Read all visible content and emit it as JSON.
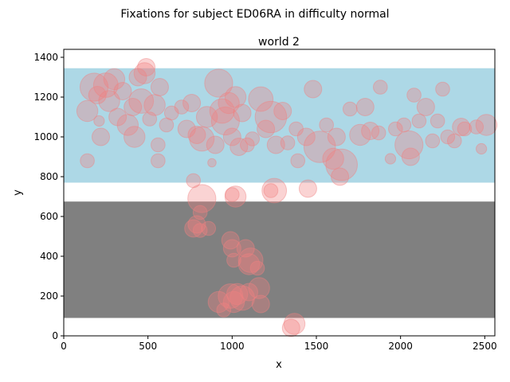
{
  "figure": {
    "suptitle": "Fixations for subject ED06RA in difficulty normal"
  },
  "chart_data": {
    "type": "scatter",
    "title": "world 2",
    "xlabel": "x",
    "ylabel": "y",
    "xlim": [
      0,
      2560
    ],
    "ylim": [
      0,
      1440
    ],
    "xticks": [
      0,
      500,
      1000,
      1500,
      2000,
      2500
    ],
    "yticks": [
      0,
      200,
      400,
      600,
      800,
      1000,
      1200,
      1400
    ],
    "grid": false,
    "legend": "none",
    "regions": [
      {
        "y_min": 770,
        "y_max": 1345,
        "color": "#add8e6"
      },
      {
        "y_min": 90,
        "y_max": 675,
        "color": "#808080"
      }
    ],
    "marker_color": "#f08080",
    "marker_alpha": 0.35,
    "points": [
      {
        "x": 140,
        "y": 1130,
        "s": 30
      },
      {
        "x": 180,
        "y": 1250,
        "s": 40
      },
      {
        "x": 200,
        "y": 1210,
        "s": 25
      },
      {
        "x": 210,
        "y": 1080,
        "s": 15
      },
      {
        "x": 220,
        "y": 1000,
        "s": 25
      },
      {
        "x": 140,
        "y": 880,
        "s": 20
      },
      {
        "x": 250,
        "y": 1260,
        "s": 35
      },
      {
        "x": 270,
        "y": 1180,
        "s": 30
      },
      {
        "x": 300,
        "y": 1290,
        "s": 30
      },
      {
        "x": 320,
        "y": 1100,
        "s": 25
      },
      {
        "x": 350,
        "y": 1230,
        "s": 25
      },
      {
        "x": 380,
        "y": 1060,
        "s": 30
      },
      {
        "x": 410,
        "y": 1150,
        "s": 25
      },
      {
        "x": 420,
        "y": 1000,
        "s": 30
      },
      {
        "x": 440,
        "y": 1300,
        "s": 25
      },
      {
        "x": 460,
        "y": 1180,
        "s": 35
      },
      {
        "x": 480,
        "y": 1320,
        "s": 30
      },
      {
        "x": 490,
        "y": 1350,
        "s": 25
      },
      {
        "x": 510,
        "y": 1090,
        "s": 20
      },
      {
        "x": 540,
        "y": 1160,
        "s": 30
      },
      {
        "x": 560,
        "y": 960,
        "s": 20
      },
      {
        "x": 560,
        "y": 880,
        "s": 20
      },
      {
        "x": 570,
        "y": 1250,
        "s": 25
      },
      {
        "x": 610,
        "y": 1060,
        "s": 20
      },
      {
        "x": 640,
        "y": 1120,
        "s": 20
      },
      {
        "x": 700,
        "y": 1150,
        "s": 20
      },
      {
        "x": 730,
        "y": 1040,
        "s": 25
      },
      {
        "x": 760,
        "y": 1170,
        "s": 25
      },
      {
        "x": 790,
        "y": 1010,
        "s": 25
      },
      {
        "x": 820,
        "y": 990,
        "s": 35
      },
      {
        "x": 850,
        "y": 1100,
        "s": 30
      },
      {
        "x": 880,
        "y": 870,
        "s": 12
      },
      {
        "x": 900,
        "y": 960,
        "s": 25
      },
      {
        "x": 920,
        "y": 1270,
        "s": 40
      },
      {
        "x": 940,
        "y": 1130,
        "s": 35
      },
      {
        "x": 960,
        "y": 1080,
        "s": 40
      },
      {
        "x": 980,
        "y": 1170,
        "s": 30
      },
      {
        "x": 1000,
        "y": 1000,
        "s": 25
      },
      {
        "x": 1020,
        "y": 1200,
        "s": 30
      },
      {
        "x": 1040,
        "y": 950,
        "s": 25
      },
      {
        "x": 1060,
        "y": 1120,
        "s": 25
      },
      {
        "x": 1090,
        "y": 960,
        "s": 20
      },
      {
        "x": 1120,
        "y": 990,
        "s": 20
      },
      {
        "x": 1170,
        "y": 1190,
        "s": 35
      },
      {
        "x": 1200,
        "y": 1040,
        "s": 25
      },
      {
        "x": 1230,
        "y": 1100,
        "s": 45
      },
      {
        "x": 1260,
        "y": 960,
        "s": 25
      },
      {
        "x": 1300,
        "y": 1130,
        "s": 25
      },
      {
        "x": 1330,
        "y": 970,
        "s": 20
      },
      {
        "x": 1380,
        "y": 1040,
        "s": 20
      },
      {
        "x": 1390,
        "y": 880,
        "s": 20
      },
      {
        "x": 1440,
        "y": 1000,
        "s": 25
      },
      {
        "x": 1480,
        "y": 1240,
        "s": 25
      },
      {
        "x": 1520,
        "y": 950,
        "s": 45
      },
      {
        "x": 1560,
        "y": 1060,
        "s": 20
      },
      {
        "x": 1600,
        "y": 890,
        "s": 30
      },
      {
        "x": 1620,
        "y": 1000,
        "s": 25
      },
      {
        "x": 1650,
        "y": 860,
        "s": 45
      },
      {
        "x": 1640,
        "y": 800,
        "s": 25
      },
      {
        "x": 1700,
        "y": 1140,
        "s": 20
      },
      {
        "x": 1760,
        "y": 1010,
        "s": 30
      },
      {
        "x": 1790,
        "y": 1150,
        "s": 25
      },
      {
        "x": 1820,
        "y": 1030,
        "s": 25
      },
      {
        "x": 1870,
        "y": 1020,
        "s": 20
      },
      {
        "x": 1880,
        "y": 1250,
        "s": 20
      },
      {
        "x": 1940,
        "y": 890,
        "s": 15
      },
      {
        "x": 1970,
        "y": 1040,
        "s": 20
      },
      {
        "x": 2020,
        "y": 1060,
        "s": 20
      },
      {
        "x": 2050,
        "y": 960,
        "s": 40
      },
      {
        "x": 2060,
        "y": 900,
        "s": 25
      },
      {
        "x": 2080,
        "y": 1210,
        "s": 20
      },
      {
        "x": 2110,
        "y": 1080,
        "s": 20
      },
      {
        "x": 2150,
        "y": 1150,
        "s": 25
      },
      {
        "x": 2190,
        "y": 980,
        "s": 20
      },
      {
        "x": 2220,
        "y": 1080,
        "s": 20
      },
      {
        "x": 2250,
        "y": 1240,
        "s": 20
      },
      {
        "x": 2280,
        "y": 1000,
        "s": 20
      },
      {
        "x": 2320,
        "y": 980,
        "s": 20
      },
      {
        "x": 2360,
        "y": 1050,
        "s": 25
      },
      {
        "x": 2380,
        "y": 1040,
        "s": 20
      },
      {
        "x": 2450,
        "y": 1050,
        "s": 20
      },
      {
        "x": 2480,
        "y": 940,
        "s": 15
      },
      {
        "x": 2510,
        "y": 1060,
        "s": 30
      },
      {
        "x": 770,
        "y": 780,
        "s": 20
      },
      {
        "x": 820,
        "y": 690,
        "s": 40
      },
      {
        "x": 810,
        "y": 620,
        "s": 20
      },
      {
        "x": 790,
        "y": 560,
        "s": 25
      },
      {
        "x": 770,
        "y": 540,
        "s": 25
      },
      {
        "x": 810,
        "y": 530,
        "s": 20
      },
      {
        "x": 860,
        "y": 540,
        "s": 20
      },
      {
        "x": 1000,
        "y": 710,
        "s": 20
      },
      {
        "x": 1020,
        "y": 700,
        "s": 30
      },
      {
        "x": 1230,
        "y": 730,
        "s": 20
      },
      {
        "x": 1250,
        "y": 730,
        "s": 35
      },
      {
        "x": 1450,
        "y": 740,
        "s": 25
      },
      {
        "x": 990,
        "y": 480,
        "s": 25
      },
      {
        "x": 1000,
        "y": 440,
        "s": 25
      },
      {
        "x": 1010,
        "y": 380,
        "s": 20
      },
      {
        "x": 1080,
        "y": 440,
        "s": 25
      },
      {
        "x": 1100,
        "y": 360,
        "s": 30
      },
      {
        "x": 1110,
        "y": 380,
        "s": 35
      },
      {
        "x": 1150,
        "y": 340,
        "s": 20
      },
      {
        "x": 1160,
        "y": 240,
        "s": 30
      },
      {
        "x": 1170,
        "y": 160,
        "s": 25
      },
      {
        "x": 920,
        "y": 170,
        "s": 30
      },
      {
        "x": 950,
        "y": 130,
        "s": 20
      },
      {
        "x": 990,
        "y": 200,
        "s": 35
      },
      {
        "x": 1010,
        "y": 170,
        "s": 30
      },
      {
        "x": 1030,
        "y": 210,
        "s": 30
      },
      {
        "x": 1060,
        "y": 190,
        "s": 35
      },
      {
        "x": 1100,
        "y": 220,
        "s": 25
      },
      {
        "x": 1350,
        "y": 40,
        "s": 25
      },
      {
        "x": 1370,
        "y": 60,
        "s": 30
      }
    ]
  }
}
